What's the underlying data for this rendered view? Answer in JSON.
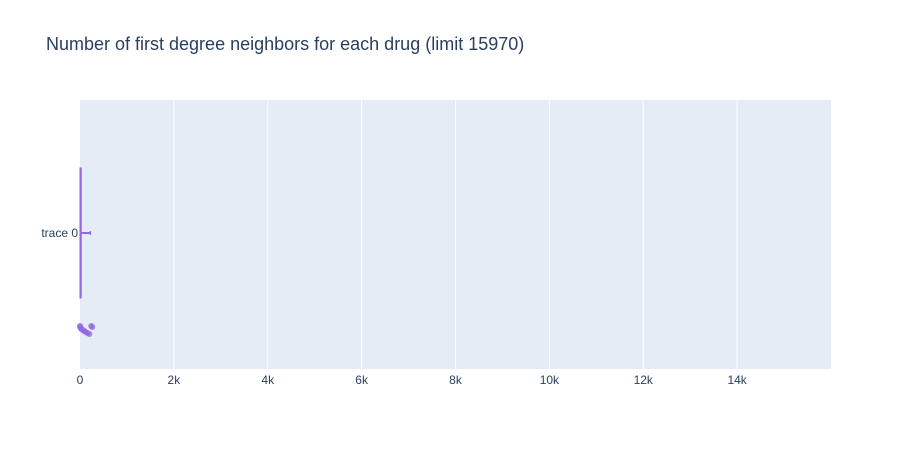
{
  "chart_data": {
    "type": "box",
    "title": "Number of first degree neighbors for each drug (limit 15970)",
    "xlabel": "",
    "ylabel": "",
    "orientation": "horizontal",
    "x_range": [
      0,
      16000
    ],
    "x_ticks": [
      {
        "value": 0,
        "label": "0"
      },
      {
        "value": 2000,
        "label": "2k"
      },
      {
        "value": 4000,
        "label": "4k"
      },
      {
        "value": 6000,
        "label": "6k"
      },
      {
        "value": 8000,
        "label": "8k"
      },
      {
        "value": 10000,
        "label": "10k"
      },
      {
        "value": 12000,
        "label": "12k"
      },
      {
        "value": 14000,
        "label": "14k"
      }
    ],
    "grid": true,
    "series": [
      {
        "name": "trace 0",
        "color": "#9467e0",
        "box": {
          "min": 0,
          "q1": 3,
          "median": 10,
          "q3": 25,
          "whisker_high": 220
        },
        "points": [
          0,
          5,
          15,
          30,
          60,
          90,
          120,
          160,
          200,
          240,
          260
        ]
      }
    ]
  }
}
